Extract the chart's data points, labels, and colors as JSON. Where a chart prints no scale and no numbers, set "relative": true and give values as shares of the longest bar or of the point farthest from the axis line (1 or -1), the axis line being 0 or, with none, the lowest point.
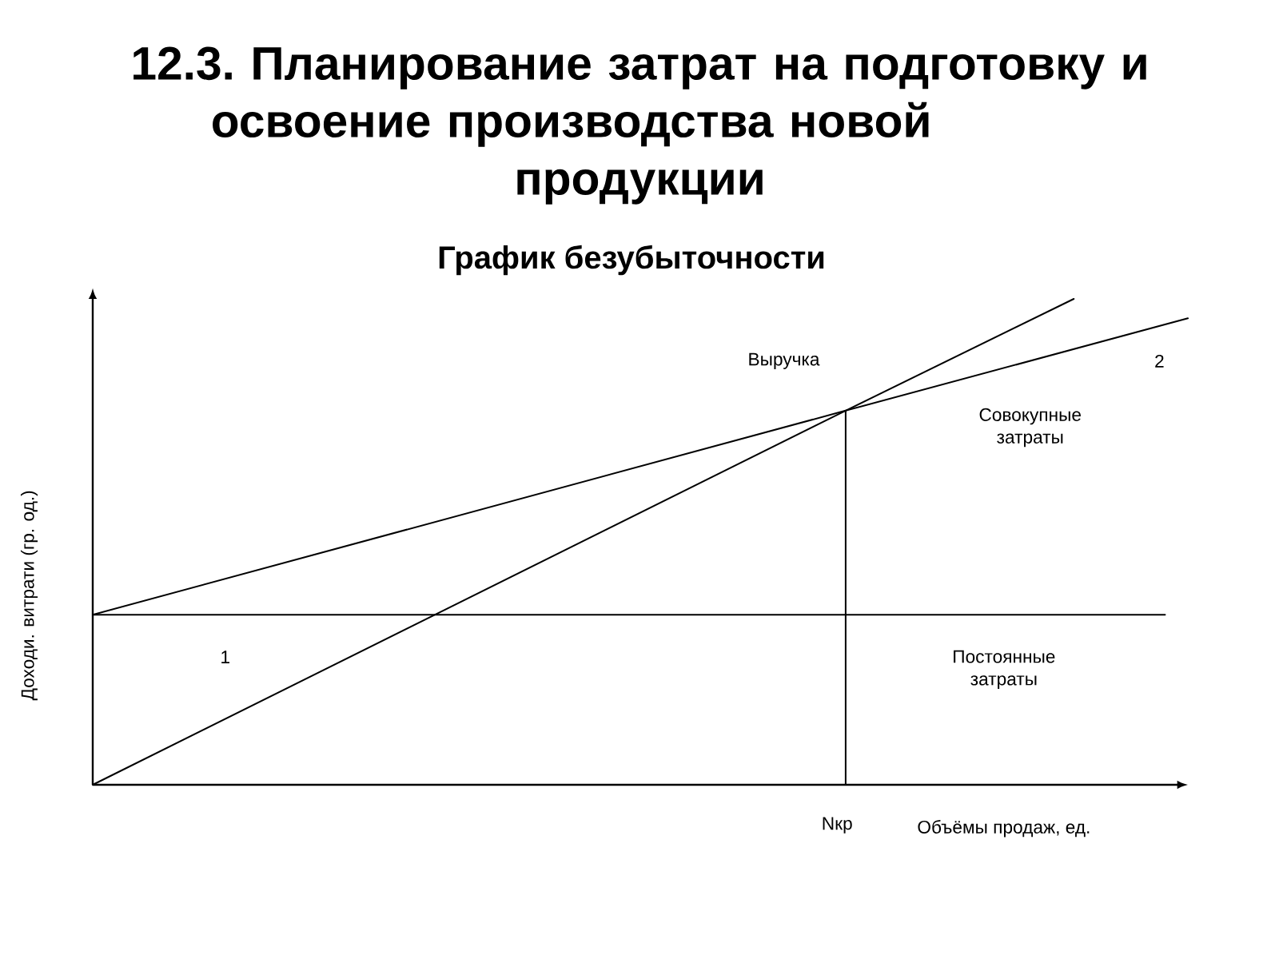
{
  "chart_data": {
    "type": "line",
    "title": "12.3. Планирование затрат на подготовку и освоение производства новой продукции",
    "subtitle": "График безубыточности",
    "xlabel": "Объёмы продаж, ед.",
    "ylabel": "Доходи. витрати (гр. од.)",
    "relative": true,
    "categories": [
      null,
      null,
      null,
      null,
      null,
      null,
      null,
      null,
      null,
      null,
      null,
      null,
      null,
      null,
      null,
      null,
      null,
      null,
      null,
      null,
      null,
      null,
      null,
      null,
      null,
      null,
      null,
      null,
      null,
      null,
      null,
      null,
      null,
      null,
      null,
      null,
      null,
      null,
      null,
      null,
      null,
      null,
      null,
      null,
      null,
      null,
      null,
      null,
      null
    ],
    "series": [
      {
        "name": "Выручка",
        "color": "#000000",
        "values": [
          0,
          null,
          null,
          null,
          null,
          null,
          null,
          null,
          null,
          null,
          null,
          null,
          null,
          null,
          null,
          null,
          null,
          null,
          null,
          null,
          null,
          null,
          null,
          null,
          null,
          null,
          null,
          null,
          null,
          null,
          null,
          null,
          null,
          0.77,
          null,
          null,
          null,
          null,
          null,
          null,
          null,
          null,
          null,
          1,
          null,
          null,
          null,
          null,
          null
        ]
      },
      {
        "name": "Совокупные затраты",
        "color": "#000000",
        "values": [
          0.35,
          null,
          null,
          null,
          null,
          null,
          null,
          null,
          null,
          null,
          null,
          null,
          null,
          null,
          null,
          null,
          null,
          null,
          null,
          null,
          null,
          null,
          null,
          null,
          null,
          null,
          null,
          null,
          null,
          null,
          null,
          null,
          null,
          0.77,
          null,
          null,
          null,
          null,
          null,
          null,
          null,
          null,
          null,
          null,
          null,
          null,
          null,
          null,
          0.96
        ]
      },
      {
        "name": "Постоянные затраты",
        "color": "#000000",
        "values": [
          0.35,
          null,
          null,
          null,
          null,
          null,
          null,
          null,
          null,
          null,
          null,
          null,
          null,
          null,
          null,
          null,
          null,
          null,
          null,
          null,
          null,
          null,
          null,
          null,
          null,
          null,
          null,
          null,
          null,
          null,
          null,
          null,
          null,
          0.35,
          null,
          null,
          null,
          null,
          null,
          null,
          null,
          null,
          null,
          null,
          null,
          null,
          null,
          0.35,
          null
        ]
      }
    ],
    "annotations": [
      "1",
      "2",
      "Nкр"
    ]
  }
}
